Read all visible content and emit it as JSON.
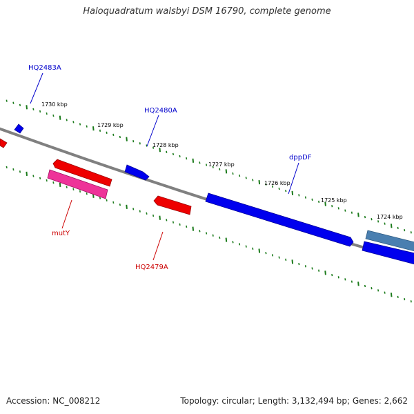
{
  "title": "Haloquadratum walsbyi DSM 16790, complete genome",
  "footer": {
    "accession": "Accession: NC_008212",
    "summary": "Topology: circular; Length: 3,132,494 bp; Genes: 2,662"
  },
  "colors": {
    "backbone": "#808080",
    "tick": "#1a7a1a",
    "forward_gene": "#0000ee",
    "reverse_gene": "#ee0000",
    "mutY_gene": "#ee3399",
    "partial_gene": "#4a7fb0",
    "forward_label": "#0000cc",
    "reverse_label": "#cc0000"
  },
  "ruler": {
    "labels": [
      "1730 kbp",
      "1729 kbp",
      "1728 kbp",
      "1727 kbp",
      "1726 kbp",
      "1725 kbp",
      "1724 kbp"
    ]
  },
  "genes": [
    {
      "name": "HQ2483A",
      "strand": "forward",
      "labeled": true
    },
    {
      "name": "HQ2480A",
      "strand": "forward",
      "labeled": true
    },
    {
      "name": "dppDF",
      "strand": "forward",
      "labeled": true
    },
    {
      "name": "mutY",
      "strand": "reverse",
      "labeled": true
    },
    {
      "name": "HQ2479A",
      "strand": "reverse",
      "labeled": true
    }
  ]
}
